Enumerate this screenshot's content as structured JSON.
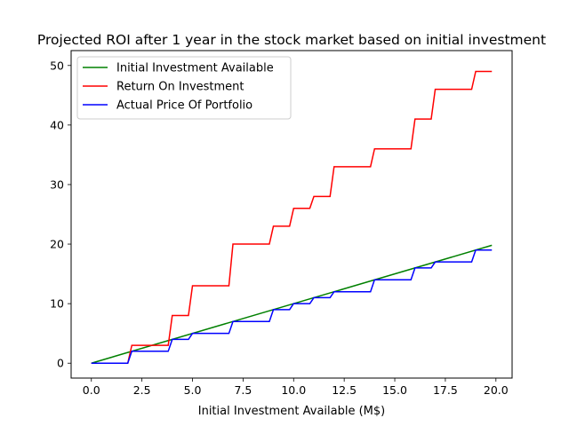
{
  "chart_data": {
    "type": "line",
    "title": "Projected ROI after 1 year in the stock market based on initial investment",
    "xlabel": "Initial Investment Available (M$)",
    "ylabel": "",
    "xlim": [
      -1.0,
      20.8
    ],
    "ylim": [
      -2.5,
      52.5
    ],
    "xticks": [
      0.0,
      2.5,
      5.0,
      7.5,
      10.0,
      12.5,
      15.0,
      17.5,
      20.0
    ],
    "xtick_labels": [
      "0.0",
      "2.5",
      "5.0",
      "7.5",
      "10.0",
      "12.5",
      "15.0",
      "17.5",
      "20.0"
    ],
    "yticks": [
      0,
      10,
      20,
      30,
      40,
      50
    ],
    "ytick_labels": [
      "0",
      "10",
      "20",
      "30",
      "40",
      "50"
    ],
    "grid": false,
    "legend_position": "upper-left",
    "series": [
      {
        "name": "Initial Investment Available",
        "color": "#008000",
        "x": [
          0,
          19.8
        ],
        "y": [
          0,
          19.8
        ]
      },
      {
        "name": "Return On Investment",
        "color": "#ff0000",
        "x": [
          0,
          1.8,
          2.0,
          3.8,
          4.0,
          4.8,
          5.0,
          6.8,
          7.0,
          8.8,
          9.0,
          9.8,
          10.0,
          10.8,
          11.0,
          11.8,
          12.0,
          13.8,
          14.0,
          15.8,
          16.0,
          16.8,
          17.0,
          18.8,
          19.0,
          19.8
        ],
        "y": [
          0,
          0,
          3,
          3,
          8,
          8,
          13,
          13,
          20,
          20,
          23,
          23,
          26,
          26,
          28,
          28,
          33,
          33,
          36,
          36,
          41,
          41,
          46,
          46,
          49,
          49
        ]
      },
      {
        "name": "Actual Price Of Portfolio",
        "color": "#0000ff",
        "x": [
          0,
          1.8,
          2.0,
          3.8,
          4.0,
          4.8,
          5.0,
          6.8,
          7.0,
          8.8,
          9.0,
          9.8,
          10.0,
          10.8,
          11.0,
          11.8,
          12.0,
          13.8,
          14.0,
          15.8,
          16.0,
          16.8,
          17.0,
          18.8,
          19.0,
          19.8
        ],
        "y": [
          0,
          0,
          2,
          2,
          4,
          4,
          5,
          5,
          7,
          7,
          9,
          9,
          10,
          10,
          11,
          11,
          12,
          12,
          14,
          14,
          16,
          16,
          17,
          17,
          19,
          19
        ]
      }
    ]
  }
}
